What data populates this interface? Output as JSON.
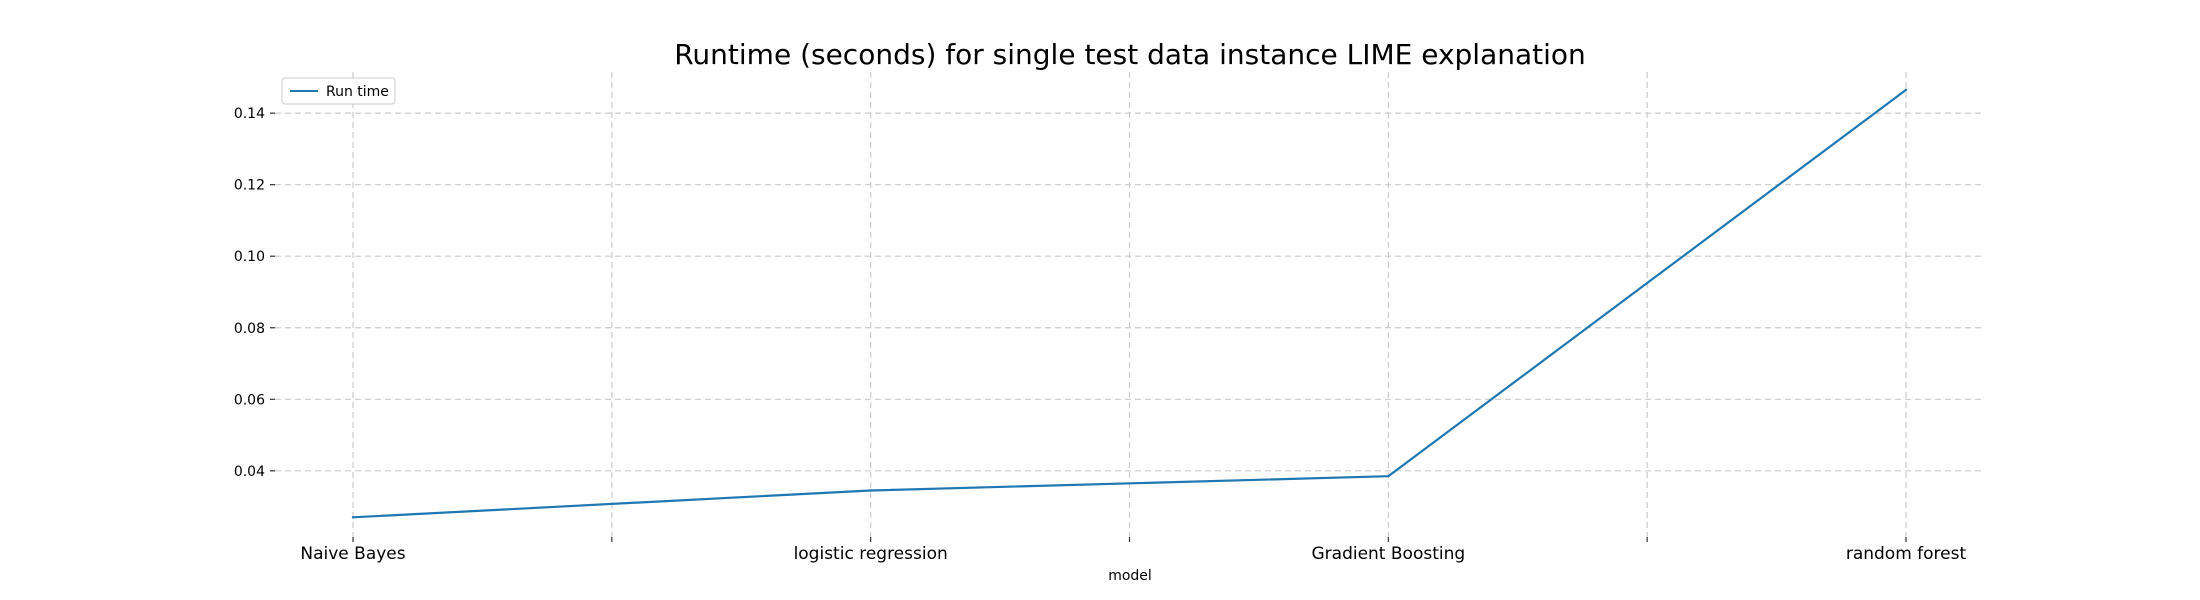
{
  "chart_data": {
    "type": "line",
    "title": "Runtime (seconds) for single test data instance LIME explanation",
    "xlabel": "model",
    "ylabel": "",
    "categories": [
      "Naive Bayes",
      "logistic regression",
      "Gradient Boosting",
      "random forest"
    ],
    "series": [
      {
        "name": "Run time",
        "color": "#1f77b4",
        "values": [
          0.027,
          0.0345,
          0.0385,
          0.1465
        ]
      }
    ],
    "ylim": [
      0.0215,
      0.1515
    ],
    "yticks": [
      0.04,
      0.06,
      0.08,
      0.1,
      0.12,
      0.14
    ],
    "ytick_labels": [
      "0.04",
      "0.06",
      "0.08",
      "0.10",
      "0.12",
      "0.14"
    ],
    "grid": true,
    "grid_style": "dashed",
    "legend_position": "top-left"
  }
}
